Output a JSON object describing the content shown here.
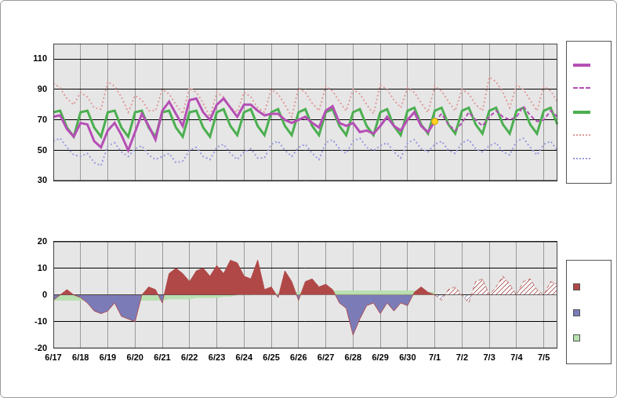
{
  "chart_data": [
    {
      "type": "line",
      "categories": [
        "6/17",
        null,
        null,
        null,
        "6/18",
        null,
        null,
        null,
        "6/19",
        null,
        null,
        null,
        "6/20",
        null,
        null,
        null,
        "6/21",
        null,
        null,
        null,
        "6/22",
        null,
        null,
        null,
        "6/23",
        null,
        null,
        null,
        "6/24",
        null,
        null,
        null,
        "6/25",
        null,
        null,
        null,
        "6/26",
        null,
        null,
        null,
        "6/27",
        null,
        null,
        null,
        "6/28",
        null,
        null,
        null,
        "6/29",
        null,
        null,
        null,
        "6/30",
        null,
        null,
        null,
        "7/1",
        null,
        null,
        null,
        "7/2",
        null,
        null,
        null,
        "7/3",
        null,
        null,
        null,
        "7/4",
        null,
        null,
        null,
        "7/5",
        null,
        null
      ],
      "ylim": [
        30,
        120
      ],
      "yticks": [
        30,
        50,
        70,
        90,
        110
      ],
      "grid": true,
      "legend": "right",
      "tick_labels": "y",
      "series": [
        {
          "color": "#ffd21f",
          "marker": "circle",
          "values": [
            null,
            null,
            null,
            null,
            null,
            null,
            null,
            null,
            null,
            null,
            null,
            null,
            null,
            null,
            null,
            null,
            null,
            null,
            null,
            null,
            null,
            null,
            null,
            null,
            null,
            null,
            null,
            null,
            null,
            null,
            null,
            null,
            null,
            null,
            null,
            null,
            null,
            null,
            null,
            null,
            null,
            null,
            null,
            null,
            null,
            null,
            null,
            null,
            null,
            null,
            null,
            null,
            null,
            null,
            null,
            null,
            69,
            null,
            null,
            null,
            null,
            null,
            null,
            null,
            null,
            null,
            null,
            null,
            null,
            null,
            null,
            null,
            null,
            null,
            null
          ]
        },
        {
          "color": "#b54fb5",
          "line_style": "solid",
          "values": [
            72,
            73,
            64,
            59,
            68,
            67,
            56,
            52,
            63,
            68,
            60,
            50,
            62,
            74,
            66,
            57,
            76,
            82,
            74,
            66,
            83,
            84,
            75,
            70,
            80,
            84,
            78,
            72,
            80,
            80,
            76,
            73,
            74,
            74,
            70,
            68,
            70,
            72,
            68,
            65,
            76,
            79,
            68,
            66,
            68,
            62,
            63,
            61,
            66,
            72,
            66,
            63,
            70,
            75,
            66,
            62,
            69,
            null,
            null,
            null,
            null,
            null,
            null,
            null,
            null,
            null,
            null,
            null,
            null,
            null,
            null,
            null,
            null,
            null,
            null
          ]
        },
        {
          "color": "#b54fb5",
          "line_style": "dashed",
          "values": [
            null,
            null,
            null,
            null,
            null,
            null,
            null,
            null,
            null,
            null,
            null,
            null,
            null,
            null,
            null,
            null,
            null,
            null,
            null,
            null,
            null,
            null,
            null,
            null,
            null,
            null,
            null,
            null,
            null,
            null,
            null,
            null,
            null,
            null,
            null,
            null,
            null,
            null,
            null,
            null,
            null,
            null,
            null,
            null,
            null,
            null,
            null,
            null,
            null,
            null,
            null,
            null,
            null,
            null,
            null,
            null,
            69,
            74,
            67,
            63,
            68,
            75,
            70,
            66,
            72,
            76,
            72,
            70,
            72,
            79,
            73,
            69,
            70,
            76,
            72
          ]
        },
        {
          "color": "#4caf50",
          "line_style": "solid",
          "values": [
            75,
            76,
            65,
            59,
            75,
            76,
            65,
            59,
            75,
            76,
            65,
            59,
            75,
            76,
            65,
            59,
            75,
            76,
            65,
            59,
            75,
            76,
            65,
            59,
            75,
            77,
            66,
            60,
            75,
            77,
            66,
            60,
            75,
            77,
            66,
            60,
            75,
            77,
            66,
            60,
            75,
            77,
            66,
            60,
            75,
            77,
            66,
            60,
            75,
            77,
            66,
            60,
            76,
            78,
            67,
            61,
            76,
            78,
            67,
            61,
            76,
            78,
            67,
            61,
            76,
            78,
            67,
            61,
            76,
            78,
            67,
            61,
            76,
            78,
            67
          ]
        },
        {
          "color": "#e09a9a",
          "line_style": "dotted",
          "values": [
            94,
            91,
            84,
            80,
            88,
            85,
            78,
            77,
            95,
            92,
            85,
            75,
            86,
            83,
            76,
            76,
            90,
            87,
            80,
            74,
            91,
            88,
            81,
            72,
            88,
            85,
            78,
            75,
            88,
            85,
            78,
            75,
            90,
            87,
            80,
            72,
            91,
            88,
            81,
            76,
            92,
            89,
            82,
            76,
            90,
            87,
            80,
            74,
            93,
            90,
            83,
            78,
            91,
            88,
            81,
            75,
            92,
            89,
            82,
            76,
            90,
            87,
            80,
            76,
            98,
            95,
            88,
            78,
            93,
            90,
            83,
            76,
            92,
            89,
            82
          ]
        },
        {
          "color": "#9a9ae0",
          "line_style": "dotted",
          "values": [
            56,
            58,
            52,
            47,
            46,
            48,
            42,
            40,
            53,
            55,
            49,
            46,
            51,
            53,
            47,
            44,
            46,
            48,
            42,
            43,
            50,
            52,
            46,
            44,
            52,
            54,
            48,
            44,
            49,
            51,
            45,
            45,
            54,
            56,
            50,
            46,
            52,
            54,
            48,
            44,
            55,
            57,
            51,
            48,
            56,
            58,
            52,
            50,
            53,
            55,
            49,
            45,
            55,
            57,
            51,
            49,
            54,
            56,
            50,
            48,
            55,
            57,
            51,
            49,
            53,
            55,
            49,
            47,
            56,
            58,
            52,
            47,
            54,
            56,
            50
          ]
        }
      ]
    },
    {
      "type": "area",
      "categories": [
        "6/17",
        null,
        null,
        null,
        "6/18",
        null,
        null,
        null,
        "6/19",
        null,
        null,
        null,
        "6/20",
        null,
        null,
        null,
        "6/21",
        null,
        null,
        null,
        "6/22",
        null,
        null,
        null,
        "6/23",
        null,
        null,
        null,
        "6/24",
        null,
        null,
        null,
        "6/25",
        null,
        null,
        null,
        "6/26",
        null,
        null,
        null,
        "6/27",
        null,
        null,
        null,
        "6/28",
        null,
        null,
        null,
        "6/29",
        null,
        null,
        null,
        "6/30",
        null,
        null,
        null,
        "7/1",
        null,
        null,
        null,
        "7/2",
        null,
        null,
        null,
        "7/3",
        null,
        null,
        null,
        "7/4",
        null,
        null,
        null,
        "7/5",
        null,
        null
      ],
      "ylim": [
        -20,
        20
      ],
      "yticks": [
        -20,
        -10,
        0,
        10,
        20
      ],
      "grid": true,
      "legend": "right",
      "series": [
        {
          "color": "#b04848",
          "colors": [
            "#b04848",
            "#7b7bb8"
          ],
          "line_style": "solid",
          "values": [
            -2,
            0,
            2,
            0,
            -1,
            -3,
            -6,
            -7,
            -6,
            -3,
            -8,
            -9,
            -10,
            0,
            3,
            2,
            -3,
            8,
            10,
            8,
            5,
            9,
            10,
            7,
            11,
            8,
            13,
            12,
            7,
            6,
            13,
            2,
            3,
            -1,
            9,
            5,
            -2,
            5,
            6,
            3,
            4,
            2,
            -3,
            -5,
            -15,
            -9,
            -4,
            -3,
            -7,
            -3,
            -6,
            -3,
            -4,
            1,
            3,
            1,
            0,
            null,
            null,
            null,
            null,
            null,
            null,
            null,
            null,
            null,
            null,
            null,
            null,
            null,
            null,
            null,
            null,
            null,
            null
          ]
        },
        {
          "color": "#b04848",
          "colors": [
            "#b04848",
            "#7b7bb8"
          ],
          "line_style": "dashed",
          "values": [
            null,
            null,
            null,
            null,
            null,
            null,
            null,
            null,
            null,
            null,
            null,
            null,
            null,
            null,
            null,
            null,
            null,
            null,
            null,
            null,
            null,
            null,
            null,
            null,
            null,
            null,
            null,
            null,
            null,
            null,
            null,
            null,
            null,
            null,
            null,
            null,
            null,
            null,
            null,
            null,
            null,
            null,
            null,
            null,
            null,
            null,
            null,
            null,
            null,
            null,
            null,
            null,
            null,
            null,
            null,
            null,
            0,
            -2,
            2,
            3,
            0,
            -3,
            5,
            6,
            0,
            3,
            7,
            4,
            0,
            5,
            6,
            2,
            0,
            5,
            4
          ]
        },
        {
          "color": "#b8e0b0",
          "line_style": "solid",
          "values": [
            -2,
            -2,
            -2,
            -2,
            -2,
            -2,
            -2,
            -2,
            -2,
            -2,
            -2,
            -2,
            -2,
            -2,
            -2,
            -2,
            -2,
            -1.5,
            -1.5,
            -1.5,
            -1.5,
            -1,
            -1,
            -1,
            -1,
            -0.5,
            -0.5,
            0,
            0,
            0,
            0.5,
            0.5,
            0.5,
            0.5,
            1,
            1,
            1,
            1,
            1,
            1.5,
            1.5,
            1.5,
            1.5,
            1.5,
            1.5,
            1.5,
            1.5,
            1.5,
            1.5,
            1.5,
            1.5,
            1.5,
            1.5,
            1.5,
            1,
            1,
            1,
            null,
            null,
            null,
            null,
            null,
            null,
            null,
            null,
            null,
            null,
            null,
            null,
            null,
            null,
            null,
            null,
            null,
            null
          ]
        }
      ]
    }
  ]
}
